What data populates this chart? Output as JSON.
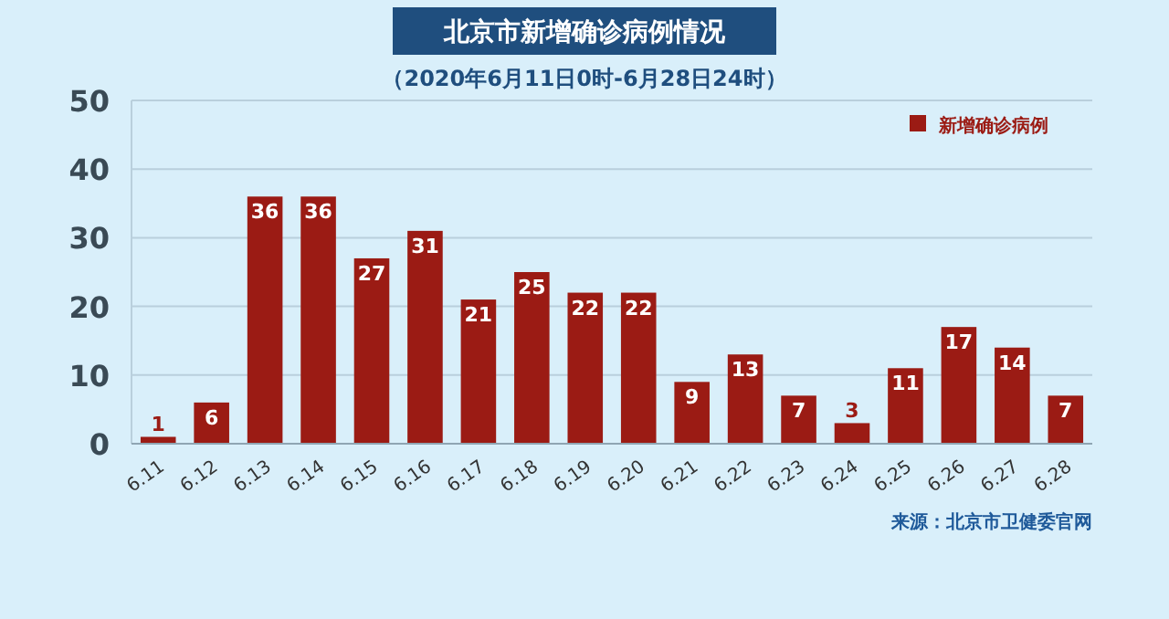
{
  "chart_data": {
    "type": "bar",
    "title": "北京市新增确诊病例情况",
    "subtitle": "（2020年6月11日0时-6月28日24时）",
    "categories": [
      "6.11",
      "6.12",
      "6.13",
      "6.14",
      "6.15",
      "6.16",
      "6.17",
      "6.18",
      "6.19",
      "6.20",
      "6.21",
      "6.22",
      "6.23",
      "6.24",
      "6.25",
      "6.26",
      "6.27",
      "6.28"
    ],
    "series": [
      {
        "name": "新增确诊病例",
        "color": "#9b1b14",
        "values": [
          1,
          6,
          36,
          36,
          27,
          31,
          21,
          25,
          22,
          22,
          9,
          13,
          7,
          3,
          11,
          17,
          14,
          7
        ]
      }
    ],
    "ylim": [
      0,
      50
    ],
    "yticks": [
      0,
      10,
      20,
      30,
      40,
      50
    ],
    "grid": "y",
    "legend": "top right",
    "data_labels": true,
    "annotations": [
      "来源：北京市卫健委官网"
    ]
  }
}
